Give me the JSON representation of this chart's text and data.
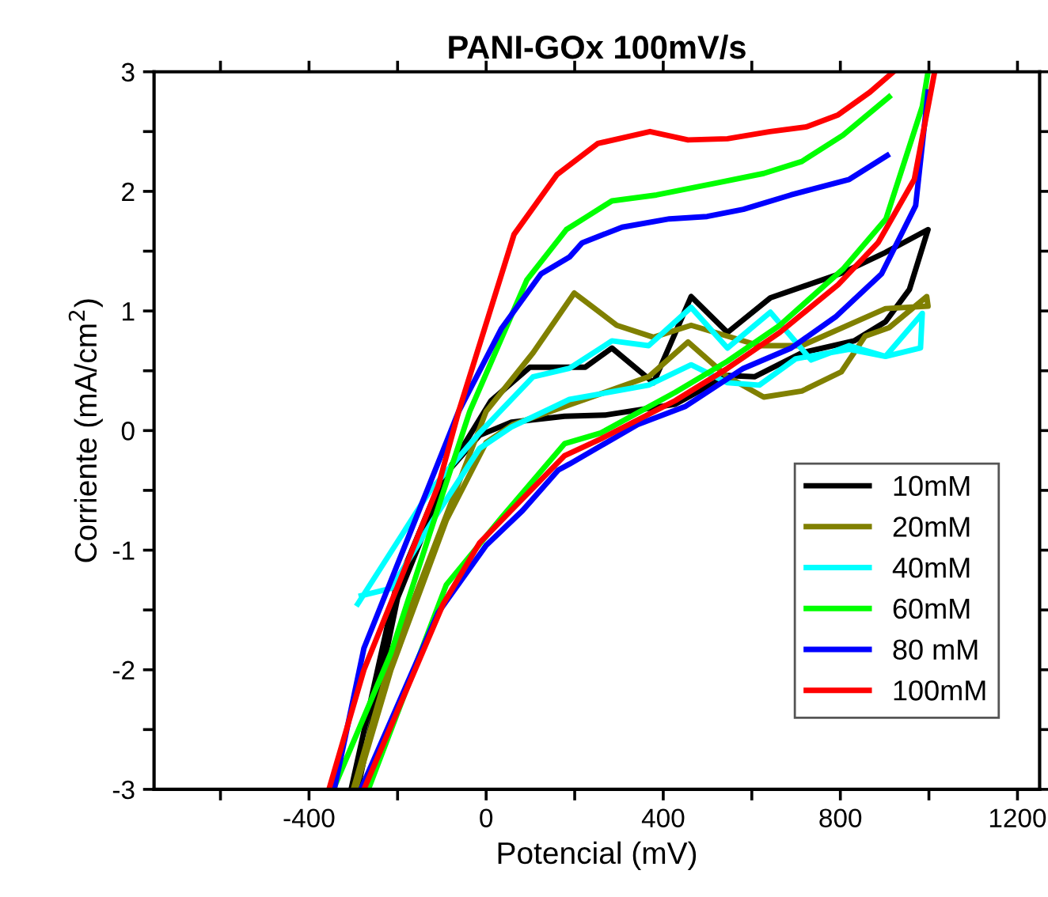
{
  "chart_data": {
    "type": "line",
    "title": "PANI-GOx 100mV/s",
    "xlabel": "Potencial (mV)",
    "ylabel": "Corriente (mA/cm$^{2}$)",
    "xlim": [
      -750,
      1250
    ],
    "ylim": [
      -3,
      3
    ],
    "xticks": [
      {
        "value": -600,
        "label": null
      },
      -400,
      {
        "value": -200,
        "label": null
      },
      0,
      {
        "value": 200,
        "label": null
      },
      400,
      {
        "value": 600,
        "label": null
      },
      800,
      {
        "value": 1000,
        "label": null
      },
      1200
    ],
    "yticks": [
      -3,
      {
        "value": -2.5,
        "label": null
      },
      -2,
      {
        "value": -1.5,
        "label": null
      },
      -1,
      {
        "value": -0.5,
        "label": null
      },
      0,
      {
        "value": 0.5,
        "label": null
      },
      1,
      {
        "value": 1.5,
        "label": null
      },
      2,
      {
        "value": 2.5,
        "label": null
      },
      3
    ],
    "grid": false,
    "legend": "bottom right",
    "marker": "none",
    "line_style": "solid",
    "series": [
      {
        "name": "10mM",
        "color": "#000000",
        "x": [
          -305,
          -205,
          -100,
          -15,
          57,
          177,
          270,
          427,
          545,
          606,
          713,
          831,
          902,
          956,
          998,
          902,
          806,
          642,
          545,
          463,
          378,
          284,
          224,
          99,
          11,
          -80,
          -200,
          -290
        ],
        "values": [
          -3.0,
          -1.33,
          -0.4,
          -0.04,
          0.07,
          0.12,
          0.13,
          0.22,
          0.46,
          0.45,
          0.65,
          0.75,
          0.91,
          1.18,
          1.68,
          1.49,
          1.32,
          1.11,
          0.82,
          1.12,
          0.4,
          0.69,
          0.53,
          0.53,
          0.25,
          -0.3,
          -1.4,
          -3.0
        ]
      },
      {
        "name": "20mM",
        "color": "#808000",
        "x": [
          -300,
          -215,
          -86,
          0,
          106,
          199,
          224,
          295,
          378,
          463,
          617,
          713,
          902,
          998,
          995,
          910,
          856,
          802,
          713,
          627,
          545,
          456,
          367,
          177,
          60,
          0,
          -90,
          -215,
          -295
        ],
        "values": [
          -3.0,
          -1.91,
          -0.67,
          0.16,
          0.65,
          1.15,
          1.08,
          0.88,
          0.78,
          0.88,
          0.71,
          0.71,
          1.02,
          1.04,
          1.12,
          0.86,
          0.79,
          0.49,
          0.33,
          0.28,
          0.45,
          0.74,
          0.45,
          0.2,
          0.05,
          -0.1,
          -0.75,
          -2.0,
          -3.0
        ]
      },
      {
        "name": "40mM",
        "color": "#00ffff",
        "x": [
          -290,
          -126,
          -15,
          106,
          188,
          284,
          367,
          463,
          545,
          642,
          734,
          820,
          902,
          981,
          985,
          902,
          820,
          699,
          617,
          545,
          463,
          367,
          188,
          57,
          -15,
          -120,
          -215,
          -282
        ],
        "values": [
          -1.45,
          -0.5,
          -0.02,
          0.45,
          0.52,
          0.75,
          0.71,
          1.03,
          0.69,
          0.99,
          0.59,
          0.71,
          0.62,
          0.69,
          0.98,
          0.62,
          0.68,
          0.6,
          0.38,
          0.4,
          0.55,
          0.38,
          0.26,
          0.03,
          -0.15,
          -0.75,
          -1.32,
          -1.38
        ]
      },
      {
        "name": "60mM",
        "color": "#00ff00",
        "x": [
          -345,
          -215,
          -100,
          -37,
          92,
          181,
          224,
          284,
          385,
          520,
          627,
          713,
          806,
          910,
          null,
          998,
          985,
          903,
          806,
          663,
          545,
          427,
          259,
          177,
          34,
          -90,
          -266
        ],
        "values": [
          -3.0,
          -1.86,
          -0.55,
          0.16,
          1.26,
          1.68,
          1.78,
          1.92,
          1.97,
          2.07,
          2.15,
          2.25,
          2.47,
          2.79,
          null,
          3.0,
          2.71,
          1.77,
          1.35,
          0.88,
          0.58,
          0.32,
          -0.02,
          -0.11,
          -0.73,
          -1.29,
          -3.0
        ]
      },
      {
        "name": "80 mM",
        "color": "#0000ff",
        "x": [
          -343,
          -276,
          -62,
          34,
          124,
          188,
          217,
          307,
          414,
          499,
          581,
          688,
          820,
          906,
          null,
          998,
          970,
          893,
          789,
          689,
          581,
          449,
          342,
          188,
          163,
          82,
          0,
          -108,
          -283
        ],
        "values": [
          -3.0,
          -1.82,
          0.16,
          0.85,
          1.31,
          1.45,
          1.57,
          1.7,
          1.77,
          1.79,
          1.85,
          1.97,
          2.1,
          2.3,
          null,
          2.83,
          1.88,
          1.31,
          0.95,
          0.69,
          0.52,
          0.2,
          0.05,
          -0.28,
          -0.33,
          -0.67,
          -0.96,
          -1.52,
          -3.0
        ]
      },
      {
        "name": "100mM",
        "color": "#ff0000",
        "x": [
          -355,
          -276,
          -108,
          -62,
          63,
          160,
          252,
          370,
          456,
          545,
          641,
          724,
          795,
          867,
          920,
          null,
          1013,
          967,
          885,
          795,
          663,
          545,
          427,
          259,
          177,
          -15,
          -97,
          -276
        ],
        "values": [
          -3.0,
          -2.0,
          -0.46,
          0.16,
          1.64,
          2.14,
          2.4,
          2.5,
          2.43,
          2.44,
          2.5,
          2.54,
          2.64,
          2.83,
          3.0,
          null,
          3.0,
          2.1,
          1.57,
          1.22,
          0.82,
          0.52,
          0.25,
          -0.07,
          -0.21,
          -0.94,
          -1.45,
          -3.0
        ]
      }
    ]
  }
}
